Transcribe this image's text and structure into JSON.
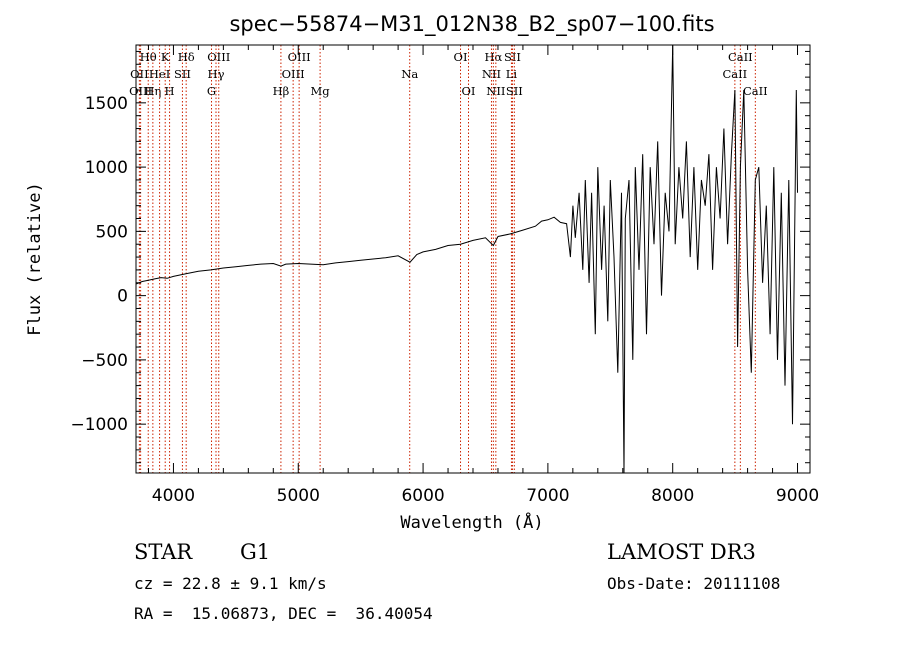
{
  "chart_data": {
    "type": "line",
    "title": "spec−55874−M31_012N38_B2_sp07−100.fits",
    "xlabel": "Wavelength (Å)",
    "ylabel": "Flux (relative)",
    "xlim": [
      3700,
      9100
    ],
    "ylim": [
      -1380,
      1950
    ],
    "x_ticks": [
      4000,
      5000,
      6000,
      7000,
      8000,
      9000
    ],
    "x_tick_labels": [
      "4000",
      "5000",
      "6000",
      "7000",
      "8000",
      "9000"
    ],
    "y_ticks": [
      -1000,
      -500,
      0,
      500,
      1000,
      1500
    ],
    "y_tick_labels": [
      "−1000",
      "−500",
      "0",
      "500",
      "1000",
      "1500"
    ],
    "series": [
      {
        "name": "spectrum",
        "color": "#000000",
        "x": [
          3700,
          3750,
          3800,
          3850,
          3900,
          3950,
          4000,
          4100,
          4200,
          4300,
          4400,
          4500,
          4600,
          4700,
          4800,
          4861,
          4900,
          5000,
          5100,
          5200,
          5300,
          5400,
          5500,
          5600,
          5700,
          5800,
          5895,
          5950,
          6000,
          6100,
          6200,
          6300,
          6400,
          6500,
          6563,
          6600,
          6700,
          6800,
          6900,
          6950,
          7000,
          7050,
          7100,
          7150,
          7180,
          7200,
          7220,
          7250,
          7280,
          7300,
          7330,
          7350,
          7380,
          7400,
          7430,
          7450,
          7480,
          7500,
          7530,
          7560,
          7590,
          7610,
          7620,
          7650,
          7680,
          7700,
          7730,
          7760,
          7790,
          7820,
          7850,
          7880,
          7910,
          7940,
          7970,
          8000,
          8020,
          8050,
          8080,
          8110,
          8140,
          8170,
          8200,
          8230,
          8260,
          8290,
          8320,
          8350,
          8380,
          8410,
          8440,
          8470,
          8498,
          8520,
          8542,
          8570,
          8600,
          8630,
          8662,
          8690,
          8720,
          8750,
          8780,
          8810,
          8840,
          8870,
          8900,
          8930,
          8960,
          8990,
          9000
        ],
        "y": [
          90,
          110,
          120,
          130,
          140,
          135,
          150,
          170,
          190,
          200,
          215,
          225,
          235,
          245,
          250,
          230,
          245,
          250,
          245,
          240,
          255,
          265,
          275,
          285,
          295,
          310,
          260,
          320,
          340,
          360,
          390,
          400,
          430,
          450,
          390,
          460,
          480,
          510,
          540,
          580,
          590,
          610,
          570,
          560,
          300,
          700,
          450,
          800,
          200,
          900,
          100,
          800,
          -300,
          1000,
          200,
          700,
          -200,
          900,
          300,
          -600,
          800,
          -1380,
          600,
          900,
          -500,
          1000,
          200,
          1100,
          -300,
          1000,
          400,
          1200,
          0,
          800,
          500,
          1950,
          400,
          1000,
          600,
          1200,
          300,
          1000,
          200,
          900,
          700,
          1100,
          200,
          1000,
          600,
          1300,
          400,
          1100,
          1600,
          -400,
          1000,
          1600,
          200,
          -600,
          900,
          1000,
          100,
          700,
          -300,
          1000,
          -500,
          800,
          -700,
          900,
          -1000,
          1600,
          800
        ]
      }
    ],
    "line_markers": [
      {
        "label": "Hθ",
        "x": 3798,
        "row": 1
      },
      {
        "label": "OII",
        "x": 3727,
        "row": 2
      },
      {
        "label": "OIII",
        "x": 3737,
        "row": 3
      },
      {
        "label": "Hη",
        "x": 3835,
        "row": 3
      },
      {
        "label": "HeI",
        "x": 3889,
        "row": 2
      },
      {
        "label": "K",
        "x": 3934,
        "row": 1
      },
      {
        "label": "H",
        "x": 3969,
        "row": 3
      },
      {
        "label": "SII",
        "x": 4072,
        "row": 2
      },
      {
        "label": "Hδ",
        "x": 4102,
        "row": 1
      },
      {
        "label": "OIII",
        "x": 4363,
        "row": 1
      },
      {
        "label": "Hγ",
        "x": 4341,
        "row": 2
      },
      {
        "label": "G",
        "x": 4305,
        "row": 3
      },
      {
        "label": "Hβ",
        "x": 4861,
        "row": 3
      },
      {
        "label": "OIII",
        "x": 5007,
        "row": 1
      },
      {
        "label": "OIII",
        "x": 4959,
        "row": 2
      },
      {
        "label": "Mg",
        "x": 5175,
        "row": 3
      },
      {
        "label": "Na",
        "x": 5893,
        "row": 2
      },
      {
        "label": "OI",
        "x": 6300,
        "row": 1
      },
      {
        "label": "OI",
        "x": 6364,
        "row": 3
      },
      {
        "label": "Hα",
        "x": 6563,
        "row": 1
      },
      {
        "label": "SII",
        "x": 6716,
        "row": 1
      },
      {
        "label": "NII",
        "x": 6548,
        "row": 2
      },
      {
        "label": "Li",
        "x": 6708,
        "row": 2
      },
      {
        "label": "NII",
        "x": 6583,
        "row": 3
      },
      {
        "label": "SII",
        "x": 6731,
        "row": 3
      },
      {
        "label": "CaII",
        "x": 8542,
        "row": 1
      },
      {
        "label": "CaII",
        "x": 8498,
        "row": 2
      },
      {
        "label": "CaII",
        "x": 8662,
        "row": 3
      }
    ]
  },
  "info": {
    "class_label": "STAR",
    "subclass": "G1",
    "survey": "LAMOST DR3",
    "cz": "cz = 22.8 ± 9.1 km/s",
    "obs_date": "Obs-Date: 20111108",
    "radec": "RA =  15.06873, DEC =  36.40054"
  },
  "colors": {
    "marker": "#cc2200",
    "line": "#000000"
  }
}
